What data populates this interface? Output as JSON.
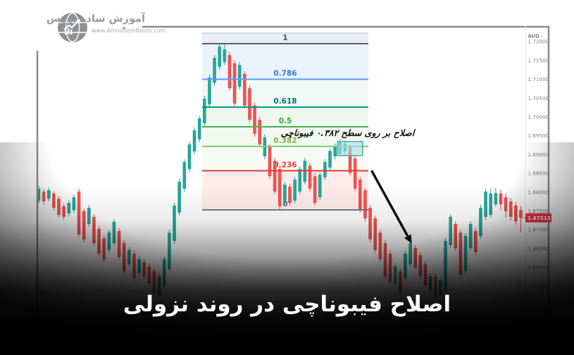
{
  "branding": {
    "name": "آموزش ساده بورس",
    "website": "www.AmoozeshBoors.com",
    "logo_icon": "globe-chart-icon"
  },
  "title": "اصلاح فیبوناچی در روند نزولی",
  "annotation": {
    "text": "اصلاح بر روی سطح ۰.۳۸۲ فیبوناچی",
    "highlight_box": {
      "from_candle": 60,
      "to_candle": 64,
      "top_price": 1.6934,
      "bottom_price": 1.6897
    },
    "arrow": {
      "from": {
        "candle": 66,
        "price": 1.6857
      },
      "to": {
        "candle": 74,
        "price": 1.6663
      }
    }
  },
  "axis": {
    "symbol": "AUD",
    "ticks": [
      "1.72000",
      "1.71500",
      "1.71000",
      "1.70500",
      "1.70000",
      "1.69500",
      "1.69000",
      "1.68500",
      "1.68000",
      "1.67500",
      "1.67000",
      "1.66500",
      "1.66000",
      "1.65500"
    ],
    "last_price": "1.67313",
    "tick_color": "#7a7e87",
    "last_price_color": "#f23645"
  },
  "watermark": "TV",
  "gear_glyph": "⚙",
  "colors": {
    "bull": "#26a69a",
    "bear": "#ef5350",
    "frame": "#8a8a8a",
    "axis_divider": "#e2e5ec"
  },
  "fib": {
    "box_top_price": 1.72225,
    "levels": [
      {
        "label": "1",
        "price": 1.71944,
        "line_color": "#5d606b",
        "label_color": "#4a4e59"
      },
      {
        "label": "0.786",
        "price": 1.70998,
        "line_color": "#5b9cf5",
        "label_color": "#2e7dd1"
      },
      {
        "label": "0.618",
        "price": 1.70255,
        "line_color": "#009688",
        "label_color": "#00796b"
      },
      {
        "label": "0.5",
        "price": 1.69734,
        "line_color": "#4caf50",
        "label_color": "#43a047"
      },
      {
        "label": "0.382",
        "price": 1.69212,
        "line_color": "#81c784",
        "label_color": "#7cb342"
      },
      {
        "label": "0.236",
        "price": 1.68567,
        "line_color": "#e53935",
        "label_color": "#e53935"
      },
      {
        "label": "0",
        "price": 1.67524,
        "line_color": "#787b86",
        "label_color": "#6a6e77"
      }
    ],
    "band_colors": [
      "#e9edf6",
      "#eaf2fb",
      "#f2f8f6",
      "#edf7ed",
      "#f1f9f0",
      "#f7fbf3",
      "#fdecea"
    ]
  },
  "chart_data": {
    "type": "candlestick",
    "symbol": "AUD",
    "ylabel": "price",
    "ylim": [
      1.65,
      1.7235
    ],
    "fib_high": 1.71944,
    "fib_low": 1.67524,
    "last_close": 1.67313,
    "candles": [
      [
        1.6777,
        1.6816,
        1.677,
        1.6809
      ],
      [
        1.6801,
        1.6809,
        1.6767,
        1.6775
      ],
      [
        1.6782,
        1.6812,
        1.6775,
        1.6805
      ],
      [
        1.6796,
        1.6803,
        1.6751,
        1.6758
      ],
      [
        1.6782,
        1.679,
        1.6732,
        1.6739
      ],
      [
        1.6762,
        1.6769,
        1.6726,
        1.6734
      ],
      [
        1.6743,
        1.6779,
        1.6735,
        1.6771
      ],
      [
        1.6752,
        1.6794,
        1.6745,
        1.6786
      ],
      [
        1.6801,
        1.6809,
        1.6679,
        1.6687
      ],
      [
        1.6749,
        1.6756,
        1.6666,
        1.6674
      ],
      [
        1.6715,
        1.6766,
        1.6707,
        1.6758
      ],
      [
        1.6734,
        1.6741,
        1.6657,
        1.6664
      ],
      [
        1.6702,
        1.6709,
        1.6628,
        1.6636
      ],
      [
        1.6677,
        1.6685,
        1.6614,
        1.6621
      ],
      [
        1.6646,
        1.67,
        1.6638,
        1.6692
      ],
      [
        1.6664,
        1.6728,
        1.6657,
        1.6721
      ],
      [
        1.6696,
        1.6704,
        1.6619,
        1.6627
      ],
      [
        1.6664,
        1.6672,
        1.6581,
        1.6589
      ],
      [
        1.6608,
        1.6653,
        1.6601,
        1.6646
      ],
      [
        1.6636,
        1.6644,
        1.6563,
        1.6571
      ],
      [
        1.6584,
        1.6629,
        1.6576,
        1.6621
      ],
      [
        1.6614,
        1.6621,
        1.6568,
        1.6576
      ],
      [
        1.6602,
        1.661,
        1.655,
        1.6557
      ],
      [
        1.6589,
        1.6597,
        1.6526,
        1.6533
      ],
      [
        1.6527,
        1.6584,
        1.6522,
        1.6576
      ],
      [
        1.6552,
        1.6629,
        1.6544,
        1.6621
      ],
      [
        1.6595,
        1.67,
        1.6588,
        1.6692
      ],
      [
        1.667,
        1.6771,
        1.6662,
        1.6764
      ],
      [
        1.6745,
        1.6835,
        1.6737,
        1.6827
      ],
      [
        1.6809,
        1.6887,
        1.6801,
        1.688
      ],
      [
        1.6861,
        1.6934,
        1.6853,
        1.6927
      ],
      [
        1.6908,
        1.6972,
        1.69,
        1.6964
      ],
      [
        1.694,
        1.7003,
        1.6932,
        1.6996
      ],
      [
        1.6983,
        1.7056,
        1.6975,
        1.7048
      ],
      [
        1.7033,
        1.7112,
        1.7026,
        1.7104
      ],
      [
        1.709,
        1.7164,
        1.7082,
        1.7157
      ],
      [
        1.7133,
        1.7194,
        1.7125,
        1.7187
      ],
      [
        1.7146,
        1.7193,
        1.7138,
        1.7179
      ],
      [
        1.7164,
        1.7172,
        1.7069,
        1.7076
      ],
      [
        1.7142,
        1.715,
        1.7028,
        1.7035
      ],
      [
        1.708,
        1.7146,
        1.7073,
        1.7138
      ],
      [
        1.7114,
        1.7121,
        1.7022,
        1.703
      ],
      [
        1.7076,
        1.7084,
        1.6985,
        1.6992
      ],
      [
        1.703,
        1.7037,
        1.6947,
        1.6955
      ],
      [
        1.6992,
        1.7,
        1.6919,
        1.6927
      ],
      [
        1.6895,
        1.6953,
        1.6887,
        1.6945
      ],
      [
        1.6921,
        1.6928,
        1.6834,
        1.6842
      ],
      [
        1.6883,
        1.6891,
        1.6794,
        1.6801
      ],
      [
        1.6861,
        1.6868,
        1.6752,
        1.6762
      ],
      [
        1.6771,
        1.6827,
        1.6764,
        1.682
      ],
      [
        1.6814,
        1.6822,
        1.6764,
        1.6771
      ],
      [
        1.6777,
        1.684,
        1.677,
        1.6833
      ],
      [
        1.6801,
        1.6868,
        1.6794,
        1.6861
      ],
      [
        1.6827,
        1.6891,
        1.682,
        1.6883
      ],
      [
        1.687,
        1.6878,
        1.6801,
        1.6809
      ],
      [
        1.6842,
        1.685,
        1.6764,
        1.6771
      ],
      [
        1.6786,
        1.6853,
        1.6779,
        1.6846
      ],
      [
        1.6839,
        1.6887,
        1.6831,
        1.688
      ],
      [
        1.6865,
        1.6916,
        1.6858,
        1.6909
      ],
      [
        1.6895,
        1.6929,
        1.6887,
        1.6921
      ],
      [
        1.6902,
        1.6942,
        1.6895,
        1.6934
      ],
      [
        1.6908,
        1.6936,
        1.69,
        1.6929
      ],
      [
        1.6921,
        1.6928,
        1.6844,
        1.6851
      ],
      [
        1.6889,
        1.6897,
        1.6801,
        1.6809
      ],
      [
        1.6833,
        1.684,
        1.6745,
        1.6752
      ],
      [
        1.6805,
        1.6812,
        1.6722,
        1.673
      ],
      [
        1.6758,
        1.6766,
        1.6666,
        1.6674
      ],
      [
        1.673,
        1.6737,
        1.6638,
        1.6646
      ],
      [
        1.6692,
        1.67,
        1.6614,
        1.6621
      ],
      [
        1.6664,
        1.6672,
        1.6568,
        1.6576
      ],
      [
        1.6636,
        1.6644,
        1.6554,
        1.6561
      ],
      [
        1.6557,
        1.661,
        1.655,
        1.6602
      ],
      [
        1.6589,
        1.6597,
        1.6526,
        1.6533
      ],
      [
        1.6571,
        1.6644,
        1.6563,
        1.6636
      ],
      [
        1.6608,
        1.6672,
        1.6601,
        1.6664
      ],
      [
        1.6651,
        1.6659,
        1.6595,
        1.6599
      ],
      [
        1.6632,
        1.664,
        1.6568,
        1.6576
      ],
      [
        1.6608,
        1.6616,
        1.6546,
        1.6552
      ],
      [
        1.6539,
        1.6584,
        1.6531,
        1.6576
      ],
      [
        1.6576,
        1.6584,
        1.6516,
        1.6524
      ],
      [
        1.6527,
        1.6572,
        1.6522,
        1.6565
      ],
      [
        1.6537,
        1.6677,
        1.6529,
        1.667
      ],
      [
        1.6659,
        1.6741,
        1.6651,
        1.6734
      ],
      [
        1.6715,
        1.6722,
        1.6643,
        1.6651
      ],
      [
        1.6692,
        1.67,
        1.6576,
        1.658
      ],
      [
        1.6589,
        1.669,
        1.6581,
        1.6683
      ],
      [
        1.6651,
        1.6722,
        1.6643,
        1.6715
      ],
      [
        1.6696,
        1.6704,
        1.6632,
        1.664
      ],
      [
        1.6683,
        1.6766,
        1.6676,
        1.6758
      ],
      [
        1.6734,
        1.6809,
        1.6726,
        1.6801
      ],
      [
        1.6739,
        1.6809,
        1.6732,
        1.6796
      ],
      [
        1.6767,
        1.6811,
        1.676,
        1.6797
      ],
      [
        1.6796,
        1.6807,
        1.6753,
        1.6767
      ],
      [
        1.6786,
        1.6797,
        1.6731,
        1.6749
      ],
      [
        1.6775,
        1.6784,
        1.6724,
        1.6734
      ],
      [
        1.6764,
        1.6773,
        1.6713,
        1.6722
      ],
      [
        1.6752,
        1.6762,
        1.6693,
        1.67313
      ]
    ]
  }
}
